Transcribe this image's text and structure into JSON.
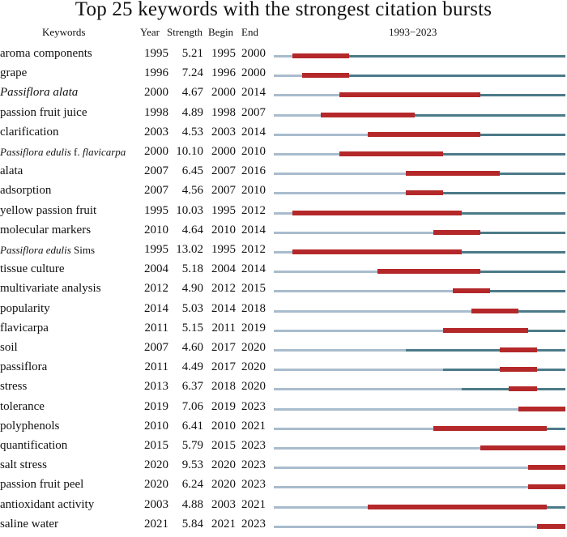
{
  "chart_data": {
    "type": "table",
    "title": "Top 25 keywords with the strongest citation bursts",
    "columns": [
      "Keywords",
      "Year",
      "Strength",
      "Begin",
      "End",
      "1993−2023"
    ],
    "timeline": {
      "start": 1993,
      "end": 2023,
      "label": "1993−2023"
    },
    "colors": {
      "before": "#a9bccd",
      "active": "#4b7a88",
      "burst": "#b4282a"
    },
    "rows": [
      {
        "keyword": "aroma components",
        "year": "1995",
        "strength": "5.21",
        "begin": "1995",
        "end": "2000"
      },
      {
        "keyword": "grape",
        "year": "1996",
        "strength": "7.24",
        "begin": "1996",
        "end": "2000"
      },
      {
        "keyword": "Passiflora alata",
        "italic": true,
        "year": "2000",
        "strength": "4.67",
        "begin": "2000",
        "end": "2014"
      },
      {
        "keyword": "passion fruit juice",
        "year": "1998",
        "strength": "4.89",
        "begin": "1998",
        "end": "2007"
      },
      {
        "keyword": "clarification",
        "year": "2003",
        "strength": "4.53",
        "begin": "2003",
        "end": "2014"
      },
      {
        "keyword": "Passiflora edulis f. flavicarpa",
        "small": true,
        "italic_parts": [
          "Passiflora edulis",
          " f. ",
          "flavicarpa"
        ],
        "year": "2000",
        "strength": "10.10",
        "begin": "2000",
        "end": "2010"
      },
      {
        "keyword": "alata",
        "year": "2007",
        "strength": "6.45",
        "begin": "2007",
        "end": "2016"
      },
      {
        "keyword": "adsorption",
        "year": "2007",
        "strength": "4.56",
        "begin": "2007",
        "end": "2010"
      },
      {
        "keyword": "yellow passion fruit",
        "year": "1995",
        "strength": "10.03",
        "begin": "1995",
        "end": "2012"
      },
      {
        "keyword": "molecular markers",
        "year": "2010",
        "strength": "4.64",
        "begin": "2010",
        "end": "2014"
      },
      {
        "keyword": "Passiflora edulis Sims",
        "small": true,
        "italic_parts": [
          "Passiflora edulis",
          " Sims",
          ""
        ],
        "year": "1995",
        "strength": "13.02",
        "begin": "1995",
        "end": "2012"
      },
      {
        "keyword": "tissue culture",
        "year": "2004",
        "strength": "5.18",
        "begin": "2004",
        "end": "2014"
      },
      {
        "keyword": "multivariate analysis",
        "year": "2012",
        "strength": "4.90",
        "begin": "2012",
        "end": "2015"
      },
      {
        "keyword": "popularity",
        "year": "2014",
        "strength": "5.03",
        "begin": "2014",
        "end": "2018"
      },
      {
        "keyword": "flavicarpa",
        "year": "2011",
        "strength": "5.15",
        "begin": "2011",
        "end": "2019"
      },
      {
        "keyword": "soil",
        "year": "2007",
        "strength": "4.60",
        "begin": "2017",
        "end": "2020"
      },
      {
        "keyword": "passiflora",
        "year": "2011",
        "strength": "4.49",
        "begin": "2017",
        "end": "2020"
      },
      {
        "keyword": "stress",
        "year": "2013",
        "strength": "6.37",
        "begin": "2018",
        "end": "2020"
      },
      {
        "keyword": "tolerance",
        "year": "2019",
        "strength": "7.06",
        "begin": "2019",
        "end": "2023"
      },
      {
        "keyword": "polyphenols",
        "year": "2010",
        "strength": "6.41",
        "begin": "2010",
        "end": "2021"
      },
      {
        "keyword": "quantification",
        "year": "2015",
        "strength": "5.79",
        "begin": "2015",
        "end": "2023"
      },
      {
        "keyword": "salt stress",
        "year": "2020",
        "strength": "9.53",
        "begin": "2020",
        "end": "2023"
      },
      {
        "keyword": "passion fruit peel",
        "year": "2020",
        "strength": "6.24",
        "begin": "2020",
        "end": "2023"
      },
      {
        "keyword": "antioxidant activity",
        "year": "2003",
        "strength": "4.88",
        "begin": "2003",
        "end": "2021"
      },
      {
        "keyword": "saline water",
        "year": "2021",
        "strength": "5.84",
        "begin": "2021",
        "end": "2023"
      }
    ]
  }
}
